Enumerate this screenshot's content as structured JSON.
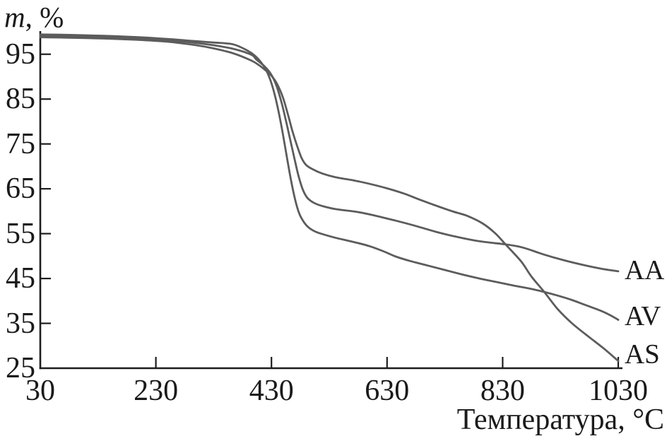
{
  "chart_data": {
    "type": "line",
    "title": "",
    "xlabel": "Температура, °C",
    "ylabel": "m, %",
    "ylabel_var": "m",
    "ylabel_rest": ", %",
    "xlim": [
      30,
      1030
    ],
    "ylim": [
      25,
      100
    ],
    "x_ticks": [
      30,
      230,
      430,
      630,
      830,
      1030
    ],
    "y_ticks": [
      95,
      85,
      75,
      65,
      55,
      45,
      35,
      25
    ],
    "grid": false,
    "legend_position": "end-of-line-labels-right",
    "line_color": "#5c5c5c",
    "axis_color": "#1d1d1d",
    "text_color": "#1a1a1a",
    "background_color": "#ffffff",
    "series": [
      {
        "name": "AA",
        "points": [
          [
            30,
            99.1
          ],
          [
            80,
            99.0
          ],
          [
            140,
            98.8
          ],
          [
            200,
            98.5
          ],
          [
            250,
            98.1
          ],
          [
            300,
            97.5
          ],
          [
            330,
            97.0
          ],
          [
            364,
            96.2
          ],
          [
            395,
            94.9
          ],
          [
            404,
            93.8
          ],
          [
            418,
            92.3
          ],
          [
            429,
            90.6
          ],
          [
            438,
            88.2
          ],
          [
            446,
            84.9
          ],
          [
            454,
            80.8
          ],
          [
            462,
            76.2
          ],
          [
            470,
            71.6
          ],
          [
            477,
            67.8
          ],
          [
            484,
            64.9
          ],
          [
            492,
            63.0
          ],
          [
            503,
            61.9
          ],
          [
            517,
            61.2
          ],
          [
            540,
            60.5
          ],
          [
            580,
            59.8
          ],
          [
            610,
            59.0
          ],
          [
            645,
            57.9
          ],
          [
            680,
            56.7
          ],
          [
            715,
            55.4
          ],
          [
            750,
            54.3
          ],
          [
            790,
            53.3
          ],
          [
            835,
            52.6
          ],
          [
            865,
            51.9
          ],
          [
            900,
            50.4
          ],
          [
            935,
            49.1
          ],
          [
            970,
            48.0
          ],
          [
            1000,
            47.2
          ],
          [
            1030,
            46.6
          ]
        ]
      },
      {
        "name": "AV",
        "points": [
          [
            30,
            99.4
          ],
          [
            80,
            99.3
          ],
          [
            140,
            99.1
          ],
          [
            200,
            98.8
          ],
          [
            250,
            98.4
          ],
          [
            300,
            97.9
          ],
          [
            330,
            97.6
          ],
          [
            364,
            97.2
          ],
          [
            390,
            95.7
          ],
          [
            402,
            94.6
          ],
          [
            412,
            93.2
          ],
          [
            421,
            91.4
          ],
          [
            429,
            88.9
          ],
          [
            436,
            85.8
          ],
          [
            443,
            81.8
          ],
          [
            450,
            77.0
          ],
          [
            457,
            71.8
          ],
          [
            464,
            66.8
          ],
          [
            471,
            62.6
          ],
          [
            478,
            59.5
          ],
          [
            486,
            57.6
          ],
          [
            494,
            56.4
          ],
          [
            505,
            55.5
          ],
          [
            518,
            54.9
          ],
          [
            540,
            54.1
          ],
          [
            570,
            53.2
          ],
          [
            600,
            52.2
          ],
          [
            625,
            51.0
          ],
          [
            645,
            49.9
          ],
          [
            670,
            48.9
          ],
          [
            700,
            47.9
          ],
          [
            730,
            46.9
          ],
          [
            760,
            45.9
          ],
          [
            790,
            45.0
          ],
          [
            820,
            44.2
          ],
          [
            850,
            43.4
          ],
          [
            875,
            42.8
          ],
          [
            902,
            42.0
          ],
          [
            925,
            41.2
          ],
          [
            950,
            40.2
          ],
          [
            975,
            39.0
          ],
          [
            1000,
            37.8
          ],
          [
            1015,
            36.9
          ],
          [
            1030,
            35.8
          ]
        ]
      },
      {
        "name": "AS",
        "points": [
          [
            30,
            98.8
          ],
          [
            80,
            98.7
          ],
          [
            140,
            98.5
          ],
          [
            200,
            98.2
          ],
          [
            250,
            97.8
          ],
          [
            300,
            97.0
          ],
          [
            330,
            96.3
          ],
          [
            364,
            95.2
          ],
          [
            395,
            93.6
          ],
          [
            408,
            92.6
          ],
          [
            418,
            91.6
          ],
          [
            430,
            90.2
          ],
          [
            440,
            88.3
          ],
          [
            450,
            85.3
          ],
          [
            458,
            81.8
          ],
          [
            466,
            78.0
          ],
          [
            474,
            74.7
          ],
          [
            482,
            71.9
          ],
          [
            490,
            70.3
          ],
          [
            502,
            69.3
          ],
          [
            518,
            68.4
          ],
          [
            540,
            67.6
          ],
          [
            575,
            66.8
          ],
          [
            600,
            66.1
          ],
          [
            630,
            65.1
          ],
          [
            660,
            63.9
          ],
          [
            690,
            62.4
          ],
          [
            720,
            61.0
          ],
          [
            745,
            59.9
          ],
          [
            768,
            59.0
          ],
          [
            795,
            57.3
          ],
          [
            817,
            55.1
          ],
          [
            835,
            52.6
          ],
          [
            862,
            48.8
          ],
          [
            880,
            45.4
          ],
          [
            902,
            42.0
          ],
          [
            925,
            38.2
          ],
          [
            950,
            35.0
          ],
          [
            980,
            31.9
          ],
          [
            1005,
            29.4
          ],
          [
            1030,
            26.6
          ]
        ]
      }
    ]
  }
}
